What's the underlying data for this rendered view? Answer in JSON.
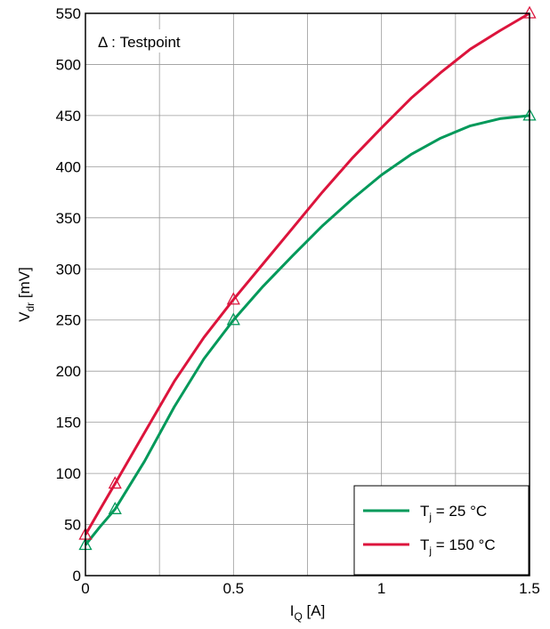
{
  "chart_data": {
    "type": "line",
    "xlabel_main": "I",
    "xlabel_sub": "Q",
    "xlabel_unit": " [A]",
    "ylabel_main": "V",
    "ylabel_sub": "dr",
    "ylabel_unit": " [mV]",
    "xlim": [
      0,
      1.5
    ],
    "ylim": [
      0,
      550
    ],
    "x_ticks": [
      0,
      0.25,
      0.5,
      0.75,
      1,
      1.25,
      1.5
    ],
    "x_tick_labels": [
      "0",
      "",
      "0.5",
      "",
      "1",
      "",
      "1.5"
    ],
    "y_ticks": [
      0,
      50,
      100,
      150,
      200,
      250,
      300,
      350,
      400,
      450,
      500,
      550
    ],
    "y_tick_labels": [
      "0",
      "50",
      "100",
      "150",
      "200",
      "250",
      "300",
      "350",
      "400",
      "450",
      "500",
      "550"
    ],
    "grid": true,
    "annotation": "Δ : Testpoint",
    "legend_position": "bottom-right",
    "series": [
      {
        "name_main": "T",
        "name_sub": "j",
        "name_rest": " = 25 °C",
        "color": "#00995a",
        "x": [
          0,
          0.05,
          0.1,
          0.2,
          0.3,
          0.4,
          0.5,
          0.6,
          0.7,
          0.8,
          0.9,
          1.0,
          1.1,
          1.2,
          1.3,
          1.4,
          1.5
        ],
        "y": [
          30,
          48,
          65,
          112,
          165,
          212,
          250,
          283,
          313,
          342,
          368,
          392,
          412,
          428,
          440,
          447,
          450
        ],
        "testpoints_x": [
          0,
          0.1,
          0.5,
          1.5
        ],
        "testpoints_y": [
          30,
          65,
          250,
          450
        ]
      },
      {
        "name_main": "T",
        "name_sub": "j",
        "name_rest": " = 150 °C",
        "color": "#dc143c",
        "x": [
          0,
          0.05,
          0.1,
          0.2,
          0.3,
          0.4,
          0.5,
          0.6,
          0.7,
          0.8,
          0.9,
          1.0,
          1.1,
          1.2,
          1.3,
          1.4,
          1.5
        ],
        "y": [
          40,
          65,
          90,
          140,
          190,
          233,
          270,
          305,
          340,
          375,
          408,
          438,
          467,
          492,
          515,
          533,
          550
        ],
        "testpoints_x": [
          0,
          0.1,
          0.5,
          1.5
        ],
        "testpoints_y": [
          40,
          90,
          270,
          550
        ]
      }
    ]
  }
}
